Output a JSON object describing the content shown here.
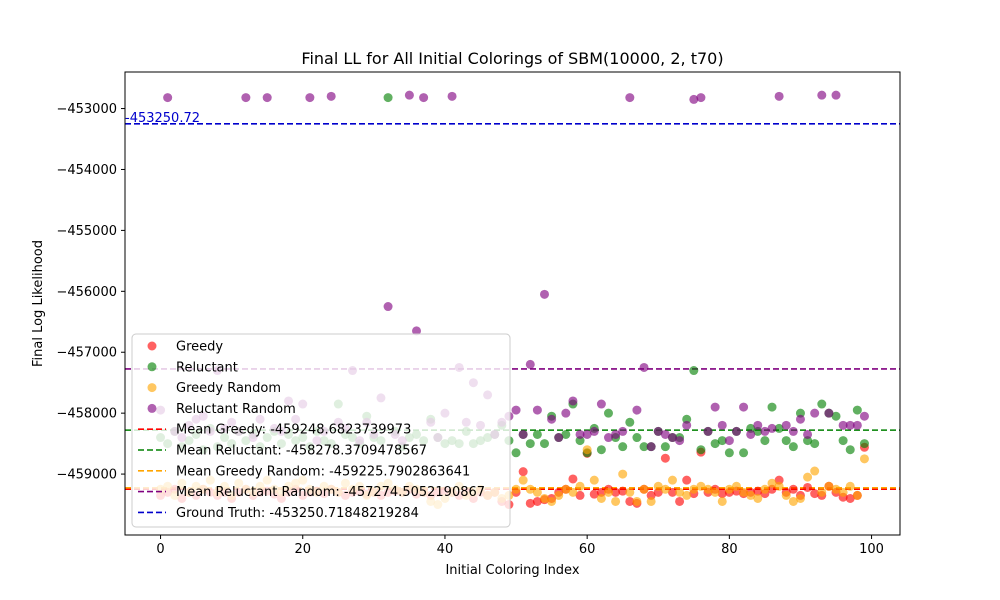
{
  "chart_data": {
    "type": "scatter",
    "title": "Final LL for All Initial Colorings of SBM(10000, 2, t70)",
    "xlabel": "Initial Coloring Index",
    "ylabel": "Final Log Likelihood",
    "xlim": [
      -5,
      104
    ],
    "ylim": [
      -460000,
      -452400
    ],
    "xticks": [
      0,
      20,
      40,
      60,
      80,
      100
    ],
    "yticks": [
      -459000,
      -458000,
      -457000,
      -456000,
      -455000,
      -454000,
      -453000
    ],
    "xtick_labels": [
      "0",
      "20",
      "40",
      "60",
      "80",
      "100"
    ],
    "ytick_labels": [
      "−459000",
      "−458000",
      "−457000",
      "−456000",
      "−455000",
      "−454000",
      "−453000"
    ],
    "legend_position": "lower-left",
    "series": [
      {
        "name": "Greedy",
        "color": "#ff0000",
        "x": [
          0,
          1,
          2,
          3,
          4,
          5,
          6,
          7,
          8,
          9,
          10,
          11,
          12,
          13,
          14,
          15,
          16,
          17,
          18,
          19,
          20,
          21,
          22,
          23,
          24,
          25,
          26,
          27,
          28,
          29,
          30,
          31,
          32,
          33,
          34,
          35,
          36,
          37,
          38,
          39,
          40,
          41,
          42,
          43,
          44,
          45,
          46,
          47,
          48,
          49,
          50,
          51,
          52,
          53,
          54,
          55,
          56,
          57,
          58,
          59,
          60,
          61,
          62,
          63,
          64,
          65,
          66,
          67,
          68,
          69,
          70,
          71,
          72,
          73,
          74,
          75,
          76,
          77,
          78,
          79,
          80,
          81,
          82,
          83,
          84,
          85,
          86,
          87,
          88,
          89,
          90,
          91,
          92,
          93,
          94,
          95,
          96,
          97,
          98,
          99
        ],
        "y": [
          -459350,
          -459300,
          -459250,
          -459400,
          -459300,
          -459350,
          -459250,
          -459300,
          -459350,
          -459300,
          -459400,
          -459300,
          -459250,
          -459350,
          -459300,
          -459280,
          -459330,
          -459400,
          -459300,
          -459250,
          -459350,
          -459300,
          -459280,
          -459320,
          -459250,
          -459300,
          -459350,
          -459300,
          -459280,
          -459330,
          -459300,
          -459350,
          -459300,
          -459280,
          -459300,
          -459250,
          -459330,
          -459300,
          -459350,
          -459300,
          -459280,
          -459300,
          -459350,
          -459300,
          -459400,
          -459300,
          -459350,
          -459300,
          -459450,
          -459500,
          -459300,
          -458960,
          -459480,
          -459450,
          -459420,
          -459400,
          -459300,
          -459250,
          -459080,
          -459350,
          -458660,
          -459330,
          -459300,
          -459250,
          -459300,
          -459280,
          -459450,
          -459480,
          -459250,
          -459350,
          -459300,
          -458740,
          -459300,
          -459450,
          -459100,
          -459320,
          -458640,
          -459300,
          -459250,
          -459320,
          -459300,
          -459280,
          -459320,
          -459300,
          -459280,
          -459320,
          -459250,
          -459100,
          -459300,
          -459250,
          -459350,
          -459220,
          -459320,
          -459350,
          -459200,
          -459300,
          -459380,
          -459400,
          -459350,
          -458560
        ]
      },
      {
        "name": "Reluctant",
        "color": "#008000",
        "x": [
          0,
          1,
          2,
          3,
          4,
          5,
          6,
          7,
          8,
          9,
          10,
          11,
          12,
          13,
          14,
          15,
          16,
          17,
          18,
          19,
          20,
          21,
          22,
          23,
          24,
          25,
          26,
          27,
          28,
          29,
          30,
          31,
          32,
          33,
          34,
          35,
          36,
          37,
          38,
          39,
          40,
          41,
          42,
          43,
          44,
          45,
          46,
          47,
          48,
          49,
          50,
          51,
          52,
          53,
          54,
          55,
          56,
          57,
          58,
          59,
          60,
          61,
          62,
          63,
          64,
          65,
          66,
          67,
          68,
          69,
          70,
          71,
          72,
          73,
          74,
          75,
          76,
          77,
          78,
          79,
          80,
          81,
          82,
          83,
          84,
          85,
          86,
          87,
          88,
          89,
          90,
          91,
          92,
          93,
          94,
          95,
          96,
          97,
          98,
          99
        ],
        "y": [
          -458400,
          -458500,
          -458300,
          -458550,
          -458450,
          -458350,
          -458600,
          -458250,
          -458550,
          -458400,
          -458500,
          -458300,
          -458450,
          -458350,
          -458550,
          -458400,
          -458300,
          -458500,
          -458350,
          -458450,
          -458400,
          -458550,
          -458300,
          -458450,
          -458500,
          -457850,
          -458350,
          -458400,
          -458500,
          -458050,
          -458400,
          -458450,
          -452820,
          -458300,
          -458550,
          -458400,
          -458350,
          -458450,
          -458100,
          -458400,
          -458500,
          -458450,
          -458500,
          -458300,
          -458500,
          -458450,
          -458400,
          -458350,
          -458200,
          -458450,
          -458650,
          -458350,
          -458500,
          -458350,
          -458500,
          -458050,
          -458400,
          -458350,
          -457850,
          -458450,
          -458650,
          -458250,
          -458600,
          -458000,
          -458400,
          -458550,
          -458150,
          -458400,
          -458550,
          -458550,
          -458300,
          -458550,
          -458400,
          -458400,
          -458100,
          -457300,
          -458600,
          -458300,
          -458500,
          -458450,
          -458650,
          -458300,
          -458650,
          -458250,
          -458300,
          -458450,
          -457900,
          -458250,
          -458450,
          -458550,
          -458000,
          -458450,
          -458500,
          -457850,
          -458000,
          -458050,
          -458450,
          -458600,
          -457950,
          -458500
        ]
      },
      {
        "name": "Greedy Random",
        "color": "#ffa500",
        "x": [
          0,
          1,
          2,
          3,
          4,
          5,
          6,
          7,
          8,
          9,
          10,
          11,
          12,
          13,
          14,
          15,
          16,
          17,
          18,
          19,
          20,
          21,
          22,
          23,
          24,
          25,
          26,
          27,
          28,
          29,
          30,
          31,
          32,
          33,
          34,
          35,
          36,
          37,
          38,
          39,
          40,
          41,
          42,
          43,
          44,
          45,
          46,
          47,
          48,
          49,
          50,
          51,
          52,
          53,
          54,
          55,
          56,
          57,
          58,
          59,
          60,
          61,
          62,
          63,
          64,
          65,
          66,
          67,
          68,
          69,
          70,
          71,
          72,
          73,
          74,
          75,
          76,
          77,
          78,
          79,
          80,
          81,
          82,
          83,
          84,
          85,
          86,
          87,
          88,
          89,
          90,
          91,
          92,
          93,
          94,
          95,
          96,
          97,
          98,
          99
        ],
        "y": [
          -459250,
          -459200,
          -459350,
          -459150,
          -459300,
          -459200,
          -459250,
          -459100,
          -459300,
          -459200,
          -459350,
          -459150,
          -459250,
          -459300,
          -459200,
          -459100,
          -459250,
          -459300,
          -459200,
          -459150,
          -459100,
          -459250,
          -459300,
          -459200,
          -459250,
          -459300,
          -459150,
          -459250,
          -459200,
          -459350,
          -459300,
          -459200,
          -459150,
          -459250,
          -459300,
          -459200,
          -459250,
          -459300,
          -459450,
          -459500,
          -459400,
          -459300,
          -459200,
          -459350,
          -459300,
          -459250,
          -459350,
          -459300,
          -459400,
          -459350,
          -459250,
          -459100,
          -459250,
          -459300,
          -459400,
          -459450,
          -459350,
          -459250,
          -459300,
          -459200,
          -458600,
          -459100,
          -459400,
          -459300,
          -459450,
          -459000,
          -459300,
          -459450,
          -459250,
          -459450,
          -459200,
          -459250,
          -459100,
          -459300,
          -459350,
          -459250,
          -459200,
          -459250,
          -459300,
          -459450,
          -459250,
          -459200,
          -459300,
          -459350,
          -459400,
          -459250,
          -459150,
          -459200,
          -459350,
          -459450,
          -459400,
          -459050,
          -458950,
          -459300,
          -459200,
          -459250,
          -459300,
          -459200,
          -459350,
          -458750
        ]
      },
      {
        "name": "Reluctant Random",
        "color": "#800080",
        "x": [
          0,
          1,
          2,
          3,
          4,
          5,
          6,
          7,
          8,
          9,
          10,
          11,
          12,
          13,
          14,
          15,
          16,
          17,
          18,
          19,
          20,
          21,
          22,
          23,
          24,
          25,
          26,
          27,
          28,
          29,
          30,
          31,
          32,
          33,
          34,
          35,
          36,
          37,
          38,
          39,
          40,
          41,
          42,
          43,
          44,
          45,
          46,
          47,
          48,
          49,
          50,
          51,
          52,
          53,
          54,
          55,
          56,
          57,
          58,
          59,
          60,
          61,
          62,
          63,
          64,
          65,
          66,
          67,
          68,
          69,
          70,
          71,
          72,
          73,
          74,
          75,
          76,
          77,
          78,
          79,
          80,
          81,
          82,
          83,
          84,
          85,
          86,
          87,
          88,
          89,
          90,
          91,
          92,
          93,
          94,
          95,
          96,
          97,
          98,
          99
        ],
        "y": [
          -457950,
          -452820,
          -458300,
          -458400,
          -458200,
          -458100,
          -458050,
          -458300,
          -457300,
          -458250,
          -458150,
          -458300,
          -452820,
          -458400,
          -458100,
          -452820,
          -458250,
          -458300,
          -457800,
          -458100,
          -457850,
          -452820,
          -458450,
          -458300,
          -452800,
          -458150,
          -458250,
          -457300,
          -458450,
          -458150,
          -458350,
          -457750,
          -456250,
          -458350,
          -458450,
          -452780,
          -456650,
          -452820,
          -458150,
          -458400,
          -458000,
          -452800,
          -457250,
          -458150,
          -457500,
          -458200,
          -457700,
          -458350,
          -458150,
          -458050,
          -457950,
          -458350,
          -457200,
          -457950,
          -456050,
          -458100,
          -458400,
          -458000,
          -457800,
          -458350,
          -458350,
          -458300,
          -457850,
          -458400,
          -458350,
          -458300,
          -452820,
          -457950,
          -457250,
          -458550,
          -458300,
          -458350,
          -458400,
          -458450,
          -458200,
          -452850,
          -452820,
          -458300,
          -457900,
          -458200,
          -458450,
          -458300,
          -457900,
          -458350,
          -458200,
          -458300,
          -458250,
          -452800,
          -458200,
          -458300,
          -458100,
          -458350,
          -458000,
          -452780,
          -458000,
          -452780,
          -458200,
          -458200,
          -458200,
          -458050
        ]
      }
    ],
    "lines": [
      {
        "name": "Mean Greedy: -459248.6823739973",
        "color": "#ff0000",
        "y": -459248.6823739973
      },
      {
        "name": "Mean Reluctant: -458278.3709478567",
        "color": "#008000",
        "y": -458278.3709478567
      },
      {
        "name": "Mean Greedy Random: -459225.7902863641",
        "color": "#ffa500",
        "y": -459225.7902863641
      },
      {
        "name": "Mean Reluctant Random: -457274.5052190867",
        "color": "#800080",
        "y": -457274.5052190867
      },
      {
        "name": "Ground Truth: -453250.71848219284",
        "color": "#0000cc",
        "y": -453250.71848219284
      }
    ],
    "annotation": {
      "text": "-453250.72",
      "color": "#0000cc",
      "x": -5,
      "y": -453250.72
    }
  }
}
